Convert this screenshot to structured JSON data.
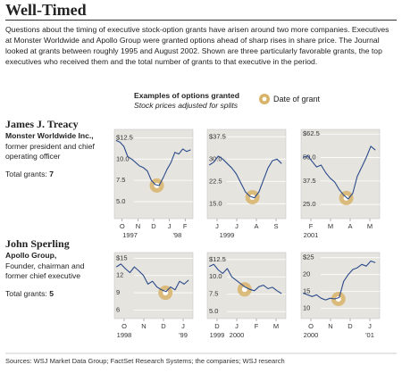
{
  "header": {
    "title": "Well-Timed",
    "intro": "Questions about the timing of executive stock-option grants have arisen around two more companies. Executives at Monster Worldwide and Apollo Group were granted options ahead of sharp rises in share price. The Journal looked at grants between roughly 1995 and August 2002. Shown are three particularly favorable grants, the top executives who received them and the total number of grants to that executive in the period."
  },
  "legend": {
    "title": "Examples of options granted",
    "subtitle": "Stock prices adjusted for splits",
    "grant_label": "Date of grant"
  },
  "executives": [
    {
      "name": "James J. Treacy",
      "company": "Monster Worldwide Inc.,",
      "role": "former president and chief operating officer",
      "total_label": "Total grants:",
      "total": 7
    },
    {
      "name": "John Sperling",
      "company": "Apollo Group,",
      "role": "Founder, chairman and former chief executive",
      "total_label": "Total grants:",
      "total": 5
    }
  ],
  "chart_data": [
    {
      "type": "line",
      "color": "#2b4a8b",
      "grid": true,
      "x": [
        0.1,
        0.35,
        0.6,
        0.85,
        1.1,
        1.35,
        1.6,
        1.85,
        2.1,
        2.35,
        2.6,
        2.85,
        3.1,
        3.35,
        3.6,
        3.85,
        4.1,
        4.35,
        4.6,
        4.85
      ],
      "values": [
        12.2,
        12.0,
        11.5,
        10.3,
        10.0,
        9.6,
        9.2,
        9.0,
        8.6,
        7.5,
        7.0,
        6.9,
        7.8,
        8.8,
        9.6,
        10.8,
        10.6,
        11.2,
        10.9,
        11.1
      ],
      "xlim": [
        0,
        5
      ],
      "ylim": [
        3,
        13.5
      ],
      "yticks": [
        {
          "value": 5,
          "label": "5.0"
        },
        {
          "value": 7.5,
          "label": "7.5"
        },
        {
          "value": 10,
          "label": "10.0"
        },
        {
          "value": 12.5,
          "label": "$12.5"
        }
      ],
      "xticks": [
        {
          "value": 0.5,
          "label": "O"
        },
        {
          "value": 1.5,
          "label": "N"
        },
        {
          "value": 2.5,
          "label": "D"
        },
        {
          "value": 3.5,
          "label": "J"
        },
        {
          "value": 4.5,
          "label": "F"
        }
      ],
      "year_labels": [
        {
          "value": 1,
          "label": "1997"
        },
        {
          "value": 4,
          "label": "'98"
        }
      ],
      "grant": {
        "x": 2.7,
        "y": 6.9
      }
    },
    {
      "type": "line",
      "color": "#2b4a8b",
      "grid": true,
      "x": [
        0.1,
        0.33,
        0.56,
        0.79,
        1.02,
        1.25,
        1.48,
        1.71,
        1.94,
        2.17,
        2.4,
        2.63,
        2.86,
        3.09,
        3.32,
        3.55,
        3.78
      ],
      "values": [
        28,
        29,
        31,
        30,
        28.5,
        27,
        25,
        22,
        19,
        17.5,
        17,
        19,
        23,
        27,
        29.5,
        30,
        28.5
      ],
      "xlim": [
        0,
        4
      ],
      "ylim": [
        10,
        40
      ],
      "yticks": [
        {
          "value": 15,
          "label": "15.0"
        },
        {
          "value": 22.5,
          "label": "22.5"
        },
        {
          "value": 30,
          "label": "30.0"
        },
        {
          "value": 37.5,
          "label": "$37.5"
        }
      ],
      "xticks": [
        {
          "value": 0.5,
          "label": "J"
        },
        {
          "value": 1.5,
          "label": "J"
        },
        {
          "value": 2.5,
          "label": "A"
        },
        {
          "value": 3.5,
          "label": "S"
        }
      ],
      "year_labels": [
        {
          "value": 1,
          "label": "1999"
        }
      ],
      "grant": {
        "x": 2.3,
        "y": 17.2
      }
    },
    {
      "type": "line",
      "color": "#2b4a8b",
      "grid": true,
      "x": [
        0.1,
        0.33,
        0.56,
        0.79,
        1.02,
        1.25,
        1.48,
        1.71,
        1.94,
        2.17,
        2.4,
        2.63,
        2.86,
        3.09,
        3.32,
        3.55,
        3.78
      ],
      "values": [
        50,
        51,
        48,
        45,
        46,
        42,
        39,
        37,
        33,
        30,
        28,
        31,
        40,
        45,
        50,
        56,
        54
      ],
      "xlim": [
        0,
        4
      ],
      "ylim": [
        17.5,
        65
      ],
      "yticks": [
        {
          "value": 25,
          "label": "25.0"
        },
        {
          "value": 37.5,
          "label": "37.5"
        },
        {
          "value": 50,
          "label": "50.0"
        },
        {
          "value": 62.5,
          "label": "$62.5"
        }
      ],
      "xticks": [
        {
          "value": 0.5,
          "label": "F"
        },
        {
          "value": 1.5,
          "label": "M"
        },
        {
          "value": 2.5,
          "label": "A"
        },
        {
          "value": 3.5,
          "label": "M"
        }
      ],
      "year_labels": [
        {
          "value": 0.5,
          "label": "2001"
        }
      ],
      "grant": {
        "x": 2.3,
        "y": 28.5
      }
    },
    {
      "type": "line",
      "color": "#2b4a8b",
      "grid": true,
      "x": [
        0.1,
        0.33,
        0.56,
        0.79,
        1.02,
        1.25,
        1.48,
        1.71,
        1.94,
        2.17,
        2.4,
        2.63,
        2.86,
        3.09,
        3.32,
        3.55,
        3.78
      ],
      "values": [
        13.5,
        14,
        13.2,
        12.5,
        13.5,
        12.8,
        12,
        10.5,
        11,
        10,
        9.5,
        9.2,
        10,
        9.5,
        11,
        10.5,
        11.2
      ],
      "xlim": [
        0,
        4
      ],
      "ylim": [
        4.5,
        16
      ],
      "yticks": [
        6,
        9,
        12,
        {
          "value": 15,
          "label": "$15"
        }
      ],
      "xticks": [
        {
          "value": 0.5,
          "label": "O"
        },
        {
          "value": 1.5,
          "label": "N"
        },
        {
          "value": 2.5,
          "label": "D"
        },
        {
          "value": 3.5,
          "label": "J"
        }
      ],
      "year_labels": [
        {
          "value": 0.5,
          "label": "1998"
        },
        {
          "value": 3.5,
          "label": "'99"
        }
      ],
      "grant": {
        "x": 2.6,
        "y": 9.0
      }
    },
    {
      "type": "line",
      "color": "#2b4a8b",
      "grid": true,
      "x": [
        0.1,
        0.33,
        0.56,
        0.79,
        1.02,
        1.25,
        1.48,
        1.71,
        1.94,
        2.17,
        2.4,
        2.63,
        2.86,
        3.09,
        3.32,
        3.55,
        3.78
      ],
      "values": [
        11.5,
        11.8,
        11,
        10.5,
        11.2,
        10,
        9.5,
        9,
        8.5,
        8.2,
        8,
        8.6,
        8.8,
        8.3,
        8.5,
        8,
        7.6
      ],
      "xlim": [
        0,
        4
      ],
      "ylim": [
        4,
        13.5
      ],
      "yticks": [
        {
          "value": 5,
          "label": "5.0"
        },
        {
          "value": 7.5,
          "label": "7.5"
        },
        {
          "value": 10,
          "label": "10.0"
        },
        {
          "value": 12.5,
          "label": "$12.5"
        }
      ],
      "xticks": [
        {
          "value": 0.5,
          "label": "D"
        },
        {
          "value": 1.5,
          "label": "J"
        },
        {
          "value": 2.5,
          "label": "F"
        },
        {
          "value": 3.5,
          "label": "M"
        }
      ],
      "year_labels": [
        {
          "value": 0.5,
          "label": "1999"
        },
        {
          "value": 1.5,
          "label": "2000"
        }
      ],
      "grant": {
        "x": 1.9,
        "y": 8.2
      }
    },
    {
      "type": "line",
      "color": "#2b4a8b",
      "grid": true,
      "x": [
        0.1,
        0.33,
        0.56,
        0.79,
        1.02,
        1.25,
        1.48,
        1.71,
        1.94,
        2.17,
        2.4,
        2.63,
        2.86,
        3.09,
        3.32,
        3.55,
        3.78
      ],
      "values": [
        14.5,
        14,
        13.5,
        14,
        13,
        12.5,
        13,
        12.8,
        13.2,
        18,
        20,
        21.5,
        22,
        23,
        22.5,
        24,
        23.5
      ],
      "xlim": [
        0,
        4
      ],
      "ylim": [
        7,
        26.5
      ],
      "yticks": [
        10,
        15,
        20,
        {
          "value": 25,
          "label": "$25"
        }
      ],
      "xticks": [
        {
          "value": 0.5,
          "label": "O"
        },
        {
          "value": 1.5,
          "label": "N"
        },
        {
          "value": 2.5,
          "label": "D"
        },
        {
          "value": 3.5,
          "label": "J"
        }
      ],
      "year_labels": [
        {
          "value": 0.5,
          "label": "2000"
        },
        {
          "value": 3.5,
          "label": "'01"
        }
      ],
      "grant": {
        "x": 1.9,
        "y": 12.8
      }
    }
  ],
  "footer": {
    "sources": "Sources: WSJ Market Data Group; FactSet Research Systems; the companies; WSJ research"
  }
}
